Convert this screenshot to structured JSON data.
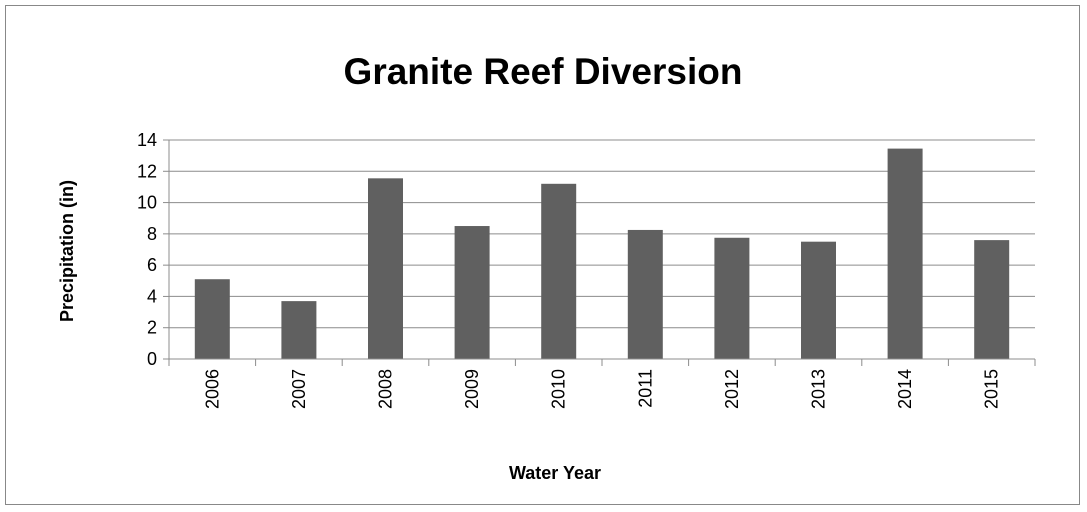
{
  "chart_data": {
    "type": "bar",
    "title": "Granite Reef Diversion",
    "xlabel": "Water Year",
    "ylabel": "Precipitation (in)",
    "categories": [
      "2006",
      "2007",
      "2008",
      "2009",
      "2010",
      "2011",
      "2012",
      "2013",
      "2014",
      "2015"
    ],
    "values": [
      5.1,
      3.7,
      11.55,
      8.5,
      11.2,
      8.25,
      7.75,
      7.5,
      13.45,
      7.6
    ],
    "ylim": [
      0,
      14
    ],
    "yticks": [
      0,
      2,
      4,
      6,
      8,
      10,
      12,
      14
    ],
    "grid": true,
    "legend": "none",
    "bar_color": "#606060"
  }
}
